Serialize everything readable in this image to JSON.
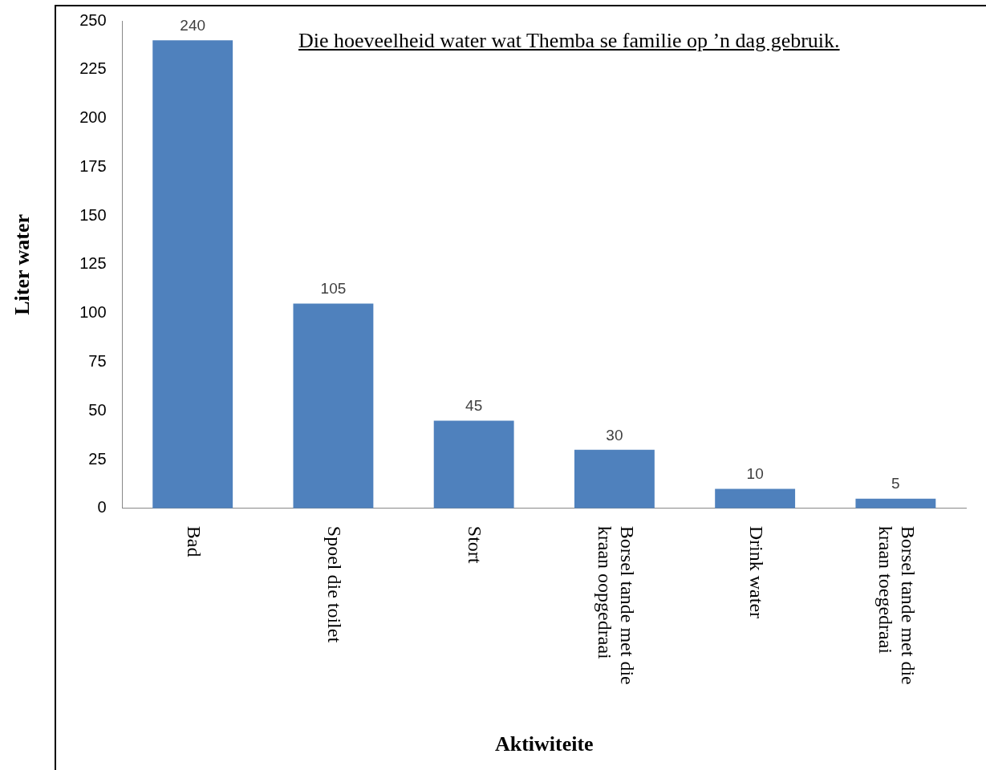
{
  "chart_data": {
    "type": "bar",
    "title": "Die hoeveelheid water wat Themba se familie op ’n dag gebruik.",
    "xlabel": "Aktiwiteite",
    "ylabel": "Liter water",
    "categories": [
      "Bad",
      "Spoel die toilet",
      "Stort",
      "Borsel tande met die kraan oopgedraai",
      "Drink water",
      "Borsel tande met die kraan toegedraai"
    ],
    "values": [
      240,
      105,
      45,
      30,
      10,
      5
    ],
    "color": "#4f81bd",
    "ylim": [
      0,
      250
    ],
    "yticks": [
      0,
      25,
      50,
      75,
      100,
      125,
      150,
      175,
      200,
      225,
      250
    ],
    "grid": false,
    "data_labels": true,
    "legend": false
  }
}
